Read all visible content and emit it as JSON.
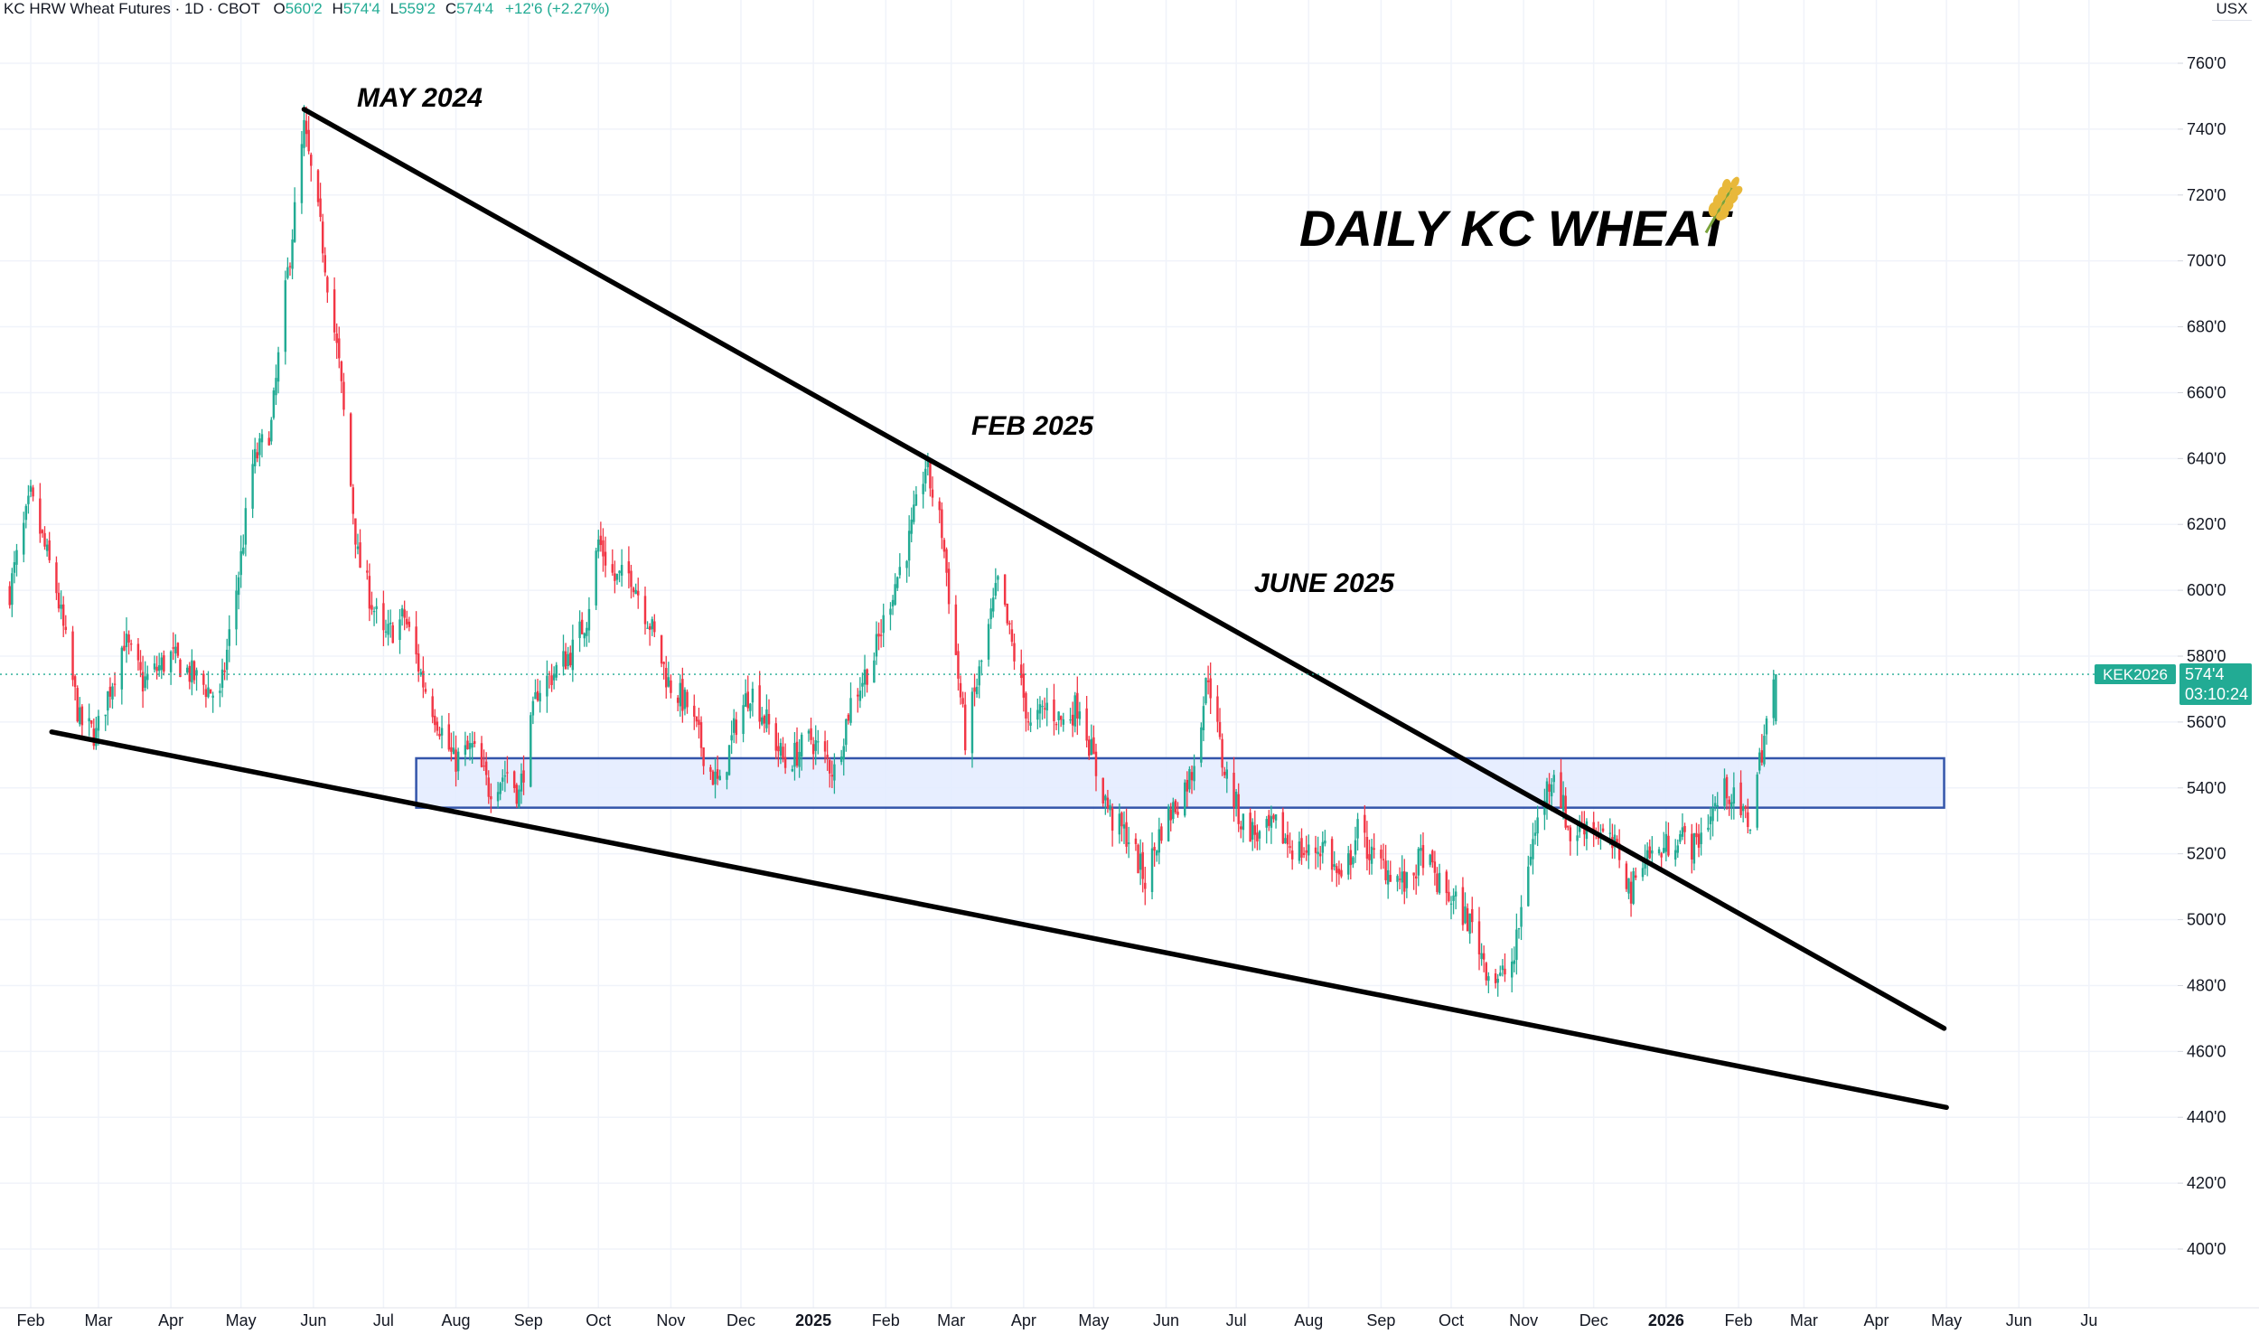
{
  "header": {
    "symbol": "KC HRW Wheat Futures · 1D · CBOT",
    "open_label": "O",
    "open": "560'2",
    "high_label": "H",
    "high": "574'4",
    "low_label": "L",
    "low": "559'2",
    "close_label": "C",
    "close": "574'4",
    "change": "+12'6 (+2.27%)"
  },
  "currency": "USX",
  "price_tag": {
    "symbol": "KEK2026",
    "price": "574'4",
    "countdown": "03:10:24"
  },
  "colors": {
    "up": "#22ab94",
    "down": "#f23645",
    "zone_fill": "#e3ebff",
    "zone_border": "#3355aa",
    "trendline": "#000000",
    "tag": "#22ab94"
  },
  "chart_data": {
    "type": "candlestick",
    "title": "DAILY KC WHEAT",
    "title_icon": "wheat-icon",
    "y_axis": {
      "unit": "USX",
      "range": [
        390,
        770
      ],
      "ticks": [
        400,
        420,
        440,
        460,
        480,
        500,
        520,
        540,
        560,
        580,
        600,
        620,
        640,
        660,
        680,
        700,
        720,
        740,
        760
      ],
      "tick_labels": [
        "400'0",
        "420'0",
        "440'0",
        "460'0",
        "480'0",
        "500'0",
        "520'0",
        "540'0",
        "560'0",
        "580'0",
        "600'0",
        "620'0",
        "640'0",
        "660'0",
        "680'0",
        "700'0",
        "720'0",
        "740'0",
        "760'0"
      ]
    },
    "x_axis": {
      "range": [
        "2024-01-23",
        "2026-06-30"
      ],
      "ticks": [
        {
          "date": "2024-02-01",
          "label": "Feb"
        },
        {
          "date": "2024-03-01",
          "label": "Mar"
        },
        {
          "date": "2024-04-01",
          "label": "Apr"
        },
        {
          "date": "2024-05-01",
          "label": "May"
        },
        {
          "date": "2024-06-01",
          "label": "Jun"
        },
        {
          "date": "2024-07-01",
          "label": "Jul"
        },
        {
          "date": "2024-08-01",
          "label": "Aug"
        },
        {
          "date": "2024-09-01",
          "label": "Sep"
        },
        {
          "date": "2024-10-01",
          "label": "Oct"
        },
        {
          "date": "2024-11-01",
          "label": "Nov"
        },
        {
          "date": "2024-12-01",
          "label": "Dec"
        },
        {
          "date": "2025-01-01",
          "label": "2025",
          "bold": true
        },
        {
          "date": "2025-02-01",
          "label": "Feb"
        },
        {
          "date": "2025-03-01",
          "label": "Mar"
        },
        {
          "date": "2025-04-01",
          "label": "Apr"
        },
        {
          "date": "2025-05-01",
          "label": "May"
        },
        {
          "date": "2025-06-01",
          "label": "Jun"
        },
        {
          "date": "2025-07-01",
          "label": "Jul"
        },
        {
          "date": "2025-08-01",
          "label": "Aug"
        },
        {
          "date": "2025-09-01",
          "label": "Sep"
        },
        {
          "date": "2025-10-01",
          "label": "Oct"
        },
        {
          "date": "2025-11-01",
          "label": "Nov"
        },
        {
          "date": "2025-12-01",
          "label": "Dec"
        },
        {
          "date": "2026-01-01",
          "label": "2026",
          "bold": true
        },
        {
          "date": "2026-02-01",
          "label": "Feb"
        },
        {
          "date": "2026-03-01",
          "label": "Mar"
        },
        {
          "date": "2026-04-01",
          "label": "Apr"
        },
        {
          "date": "2026-05-01",
          "label": "May"
        },
        {
          "date": "2026-06-01",
          "label": "Jun"
        },
        {
          "date": "2026-07-01",
          "label": "Ju"
        }
      ]
    },
    "grid": true,
    "price_path": [
      [
        "2024-01-23",
        600
      ],
      [
        "2024-02-01",
        628
      ],
      [
        "2024-02-12",
        600
      ],
      [
        "2024-02-22",
        560
      ],
      [
        "2024-02-29",
        556
      ],
      [
        "2024-03-12",
        585
      ],
      [
        "2024-03-20",
        572
      ],
      [
        "2024-04-01",
        580
      ],
      [
        "2024-04-12",
        573
      ],
      [
        "2024-04-22",
        567
      ],
      [
        "2024-05-01",
        610
      ],
      [
        "2024-05-06",
        638
      ],
      [
        "2024-05-14",
        650
      ],
      [
        "2024-05-20",
        690
      ],
      [
        "2024-05-28",
        740
      ],
      [
        "2024-06-05",
        705
      ],
      [
        "2024-06-12",
        668
      ],
      [
        "2024-06-20",
        610
      ],
      [
        "2024-07-01",
        585
      ],
      [
        "2024-07-10",
        592
      ],
      [
        "2024-07-18",
        572
      ],
      [
        "2024-07-31",
        548
      ],
      [
        "2024-08-08",
        552
      ],
      [
        "2024-08-15",
        540
      ],
      [
        "2024-08-23",
        545
      ],
      [
        "2024-08-28",
        538
      ],
      [
        "2024-09-05",
        570
      ],
      [
        "2024-09-12",
        575
      ],
      [
        "2024-09-20",
        582
      ],
      [
        "2024-09-26",
        592
      ],
      [
        "2024-10-01",
        615
      ],
      [
        "2024-10-08",
        603
      ],
      [
        "2024-10-15",
        605
      ],
      [
        "2024-10-23",
        590
      ],
      [
        "2024-10-31",
        572
      ],
      [
        "2024-11-08",
        565
      ],
      [
        "2024-11-18",
        545
      ],
      [
        "2024-11-22",
        540
      ],
      [
        "2024-11-29",
        560
      ],
      [
        "2024-12-05",
        570
      ],
      [
        "2024-12-12",
        560
      ],
      [
        "2024-12-20",
        547
      ],
      [
        "2024-12-31",
        555
      ],
      [
        "2025-01-10",
        545
      ],
      [
        "2025-01-17",
        566
      ],
      [
        "2025-01-27",
        580
      ],
      [
        "2025-02-03",
        598
      ],
      [
        "2025-02-11",
        615
      ],
      [
        "2025-02-18",
        638
      ],
      [
        "2025-02-25",
        618
      ],
      [
        "2025-03-03",
        580
      ],
      [
        "2025-03-07",
        555
      ],
      [
        "2025-03-14",
        578
      ],
      [
        "2025-03-21",
        602
      ],
      [
        "2025-03-28",
        580
      ],
      [
        "2025-04-04",
        558
      ],
      [
        "2025-04-11",
        565
      ],
      [
        "2025-04-18",
        560
      ],
      [
        "2025-04-25",
        566
      ],
      [
        "2025-05-02",
        545
      ],
      [
        "2025-05-09",
        530
      ],
      [
        "2025-05-16",
        525
      ],
      [
        "2025-05-23",
        512
      ],
      [
        "2025-05-30",
        528
      ],
      [
        "2025-06-06",
        536
      ],
      [
        "2025-06-12",
        545
      ],
      [
        "2025-06-19",
        575
      ],
      [
        "2025-06-25",
        548
      ],
      [
        "2025-07-03",
        530
      ],
      [
        "2025-07-11",
        525
      ],
      [
        "2025-07-18",
        528
      ],
      [
        "2025-07-25",
        522
      ],
      [
        "2025-08-01",
        520
      ],
      [
        "2025-08-08",
        523
      ],
      [
        "2025-08-15",
        510
      ],
      [
        "2025-08-22",
        527
      ],
      [
        "2025-08-29",
        518
      ],
      [
        "2025-09-05",
        515
      ],
      [
        "2025-09-12",
        510
      ],
      [
        "2025-09-19",
        520
      ],
      [
        "2025-09-26",
        510
      ],
      [
        "2025-10-03",
        505
      ],
      [
        "2025-10-10",
        498
      ],
      [
        "2025-10-17",
        484
      ],
      [
        "2025-10-22",
        482
      ],
      [
        "2025-10-28",
        488
      ],
      [
        "2025-11-03",
        518
      ],
      [
        "2025-11-10",
        538
      ],
      [
        "2025-11-14",
        546
      ],
      [
        "2025-11-21",
        525
      ],
      [
        "2025-11-28",
        530
      ],
      [
        "2025-12-05",
        525
      ],
      [
        "2025-12-12",
        520
      ],
      [
        "2025-12-17",
        508
      ],
      [
        "2025-12-22",
        520
      ],
      [
        "2025-12-29",
        520
      ],
      [
        "2026-01-06",
        526
      ],
      [
        "2026-01-13",
        522
      ],
      [
        "2026-01-20",
        532
      ],
      [
        "2026-01-27",
        540
      ],
      [
        "2026-02-02",
        532
      ],
      [
        "2026-02-06",
        530
      ],
      [
        "2026-02-10",
        548
      ],
      [
        "2026-02-13",
        560
      ],
      [
        "2026-02-17",
        574.5
      ]
    ],
    "last": {
      "open": 560.25,
      "high": 574.5,
      "low": 559.25,
      "close": 574.5
    },
    "annotations": [
      {
        "text": "MAY 2024"
      },
      {
        "text": "FEB 2025"
      },
      {
        "text": "JUNE 2025"
      }
    ],
    "trendlines": [
      {
        "name": "upper-trendline",
        "from": [
          "2024-05-28",
          746
        ],
        "to": [
          "2026-04-30",
          467
        ]
      },
      {
        "name": "lower-trendline",
        "from": [
          "2024-02-10",
          557
        ],
        "to": [
          "2026-05-01",
          443
        ]
      }
    ],
    "zones": [
      {
        "name": "support-zone",
        "from": "2024-07-15",
        "to": "2026-04-30",
        "low": 534,
        "high": 549
      }
    ]
  }
}
